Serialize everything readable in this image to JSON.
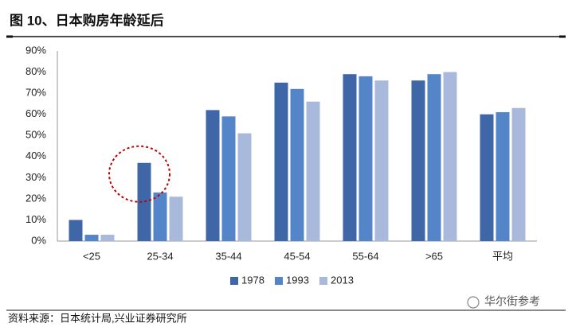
{
  "chart_data": {
    "type": "bar",
    "title": "图 10、日本购房年龄延后",
    "source": "资料来源：日本统计局,兴业证券研究所",
    "watermark": "华尔街参考",
    "categories": [
      "<25",
      "25-34",
      "35-44",
      "45-54",
      "55-64",
      ">65",
      "平均"
    ],
    "series": [
      {
        "name": "1978",
        "color": "#3f67a8",
        "values": [
          10,
          37,
          62,
          75,
          79,
          76,
          60
        ]
      },
      {
        "name": "1993",
        "color": "#5585c9",
        "values": [
          3,
          23,
          59,
          72,
          78,
          79,
          61
        ]
      },
      {
        "name": "2013",
        "color": "#a9b9db",
        "values": [
          3,
          21,
          51,
          66,
          76,
          80,
          63
        ]
      }
    ],
    "ylim": [
      0,
      90
    ],
    "yticks": [
      {
        "value": 0,
        "label": "0%"
      },
      {
        "value": 10,
        "label": "10%"
      },
      {
        "value": 20,
        "label": "20%"
      },
      {
        "value": 30,
        "label": "30%"
      },
      {
        "value": 40,
        "label": "40%"
      },
      {
        "value": 50,
        "label": "50%"
      },
      {
        "value": 60,
        "label": "60%"
      },
      {
        "value": 70,
        "label": "70%"
      },
      {
        "value": 80,
        "label": "80%"
      },
      {
        "value": 90,
        "label": "90%"
      }
    ],
    "grid": false,
    "legend": "bottom"
  }
}
